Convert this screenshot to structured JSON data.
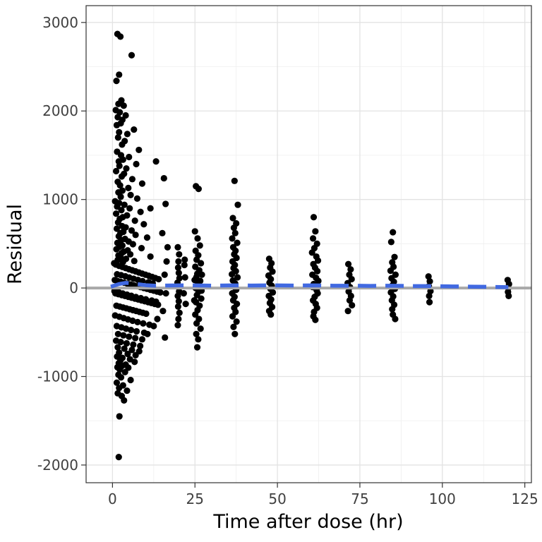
{
  "chart_data": {
    "type": "scatter",
    "title": "",
    "xlabel": "Time after dose (hr)",
    "ylabel": "Residual",
    "xlim": [
      -8,
      127
    ],
    "ylim": [
      -2200,
      3190
    ],
    "x_ticks": [
      0,
      25,
      50,
      75,
      100,
      125
    ],
    "x_minor_ticks": [
      12.5,
      37.5,
      62.5,
      87.5,
      112.5
    ],
    "y_ticks": [
      -2000,
      -1000,
      0,
      1000,
      2000,
      3000
    ],
    "y_minor_ticks": [
      -1500,
      -500,
      500,
      1500,
      2500
    ],
    "grid": true,
    "legend": "none",
    "panel": {
      "background": "#FFFFFF",
      "border": "#333333",
      "grid_major": "#E3E3E3",
      "grid_minor": "#F0F0F0",
      "tick_color": "#333333",
      "tick_label_color": "#404040"
    },
    "point_color": "#000000",
    "point_radius": 4.6,
    "reference_line": {
      "y": 0,
      "color": "#A8A8A8",
      "width": 4
    },
    "smoother": {
      "color": "#4169E1",
      "width": 5.5,
      "dash": "26 13",
      "points": [
        [
          -0.5,
          15
        ],
        [
          2,
          45
        ],
        [
          4,
          58
        ],
        [
          6,
          52
        ],
        [
          8,
          42
        ],
        [
          10,
          32
        ],
        [
          13,
          26
        ],
        [
          16,
          28
        ],
        [
          20,
          30
        ],
        [
          25,
          30
        ],
        [
          30,
          26
        ],
        [
          36,
          30
        ],
        [
          42,
          28
        ],
        [
          48,
          30
        ],
        [
          55,
          28
        ],
        [
          61,
          30
        ],
        [
          67,
          26
        ],
        [
          72,
          26
        ],
        [
          78,
          24
        ],
        [
          85,
          26
        ],
        [
          91,
          22
        ],
        [
          96,
          22
        ],
        [
          103,
          18
        ],
        [
          110,
          15
        ],
        [
          116,
          12
        ],
        [
          120,
          10
        ]
      ]
    },
    "points": [
      [
        1.5,
        2870
      ],
      [
        2.4,
        2840
      ],
      [
        5.8,
        2630
      ],
      [
        2.0,
        2410
      ],
      [
        1.2,
        2340
      ],
      [
        2.7,
        2120
      ],
      [
        1.8,
        2080
      ],
      [
        3.4,
        2060
      ],
      [
        1.0,
        2010
      ],
      [
        2.2,
        1985
      ],
      [
        4.0,
        1950
      ],
      [
        1.6,
        1930
      ],
      [
        3.0,
        1900
      ],
      [
        2.5,
        1860
      ],
      [
        1.3,
        1840
      ],
      [
        6.5,
        1790
      ],
      [
        2.0,
        1760
      ],
      [
        4.5,
        1740
      ],
      [
        1.7,
        1700
      ],
      [
        3.7,
        1660
      ],
      [
        2.9,
        1620
      ],
      [
        8.0,
        1560
      ],
      [
        1.4,
        1540
      ],
      [
        2.6,
        1500
      ],
      [
        5.0,
        1480
      ],
      [
        3.2,
        1450
      ],
      [
        1.9,
        1430
      ],
      [
        13.2,
        1430
      ],
      [
        7.2,
        1400
      ],
      [
        2.1,
        1380
      ],
      [
        4.2,
        1350
      ],
      [
        1.1,
        1320
      ],
      [
        3.5,
        1290
      ],
      [
        2.8,
        1260
      ],
      [
        15.6,
        1240
      ],
      [
        6.0,
        1230
      ],
      [
        1.6,
        1200
      ],
      [
        9.0,
        1180
      ],
      [
        2.3,
        1160
      ],
      [
        4.8,
        1130
      ],
      [
        3.0,
        1100
      ],
      [
        1.8,
        1080
      ],
      [
        5.5,
        1050
      ],
      [
        2.5,
        1030
      ],
      [
        7.5,
        1010
      ],
      [
        16.1,
        950
      ],
      [
        11.5,
        900
      ],
      [
        0.8,
        980
      ],
      [
        2.0,
        960
      ],
      [
        3.6,
        940
      ],
      [
        1.4,
        920
      ],
      [
        5.2,
        900
      ],
      [
        2.7,
        880
      ],
      [
        8.5,
        860
      ],
      [
        1.1,
        840
      ],
      [
        4.4,
        820
      ],
      [
        3.1,
        800
      ],
      [
        2.2,
        780
      ],
      [
        6.8,
        760
      ],
      [
        1.7,
        740
      ],
      [
        9.5,
        720
      ],
      [
        2.9,
        700
      ],
      [
        4.0,
        685
      ],
      [
        1.3,
        670
      ],
      [
        5.8,
        650
      ],
      [
        3.3,
        635
      ],
      [
        2.4,
        620
      ],
      [
        7.0,
        600
      ],
      [
        1.9,
        585
      ],
      [
        10.5,
        570
      ],
      [
        3.8,
        555
      ],
      [
        2.6,
        540
      ],
      [
        4.9,
        525
      ],
      [
        1.5,
        510
      ],
      [
        6.2,
        495
      ],
      [
        3.0,
        480
      ],
      [
        2.1,
        465
      ],
      [
        8.8,
        450
      ],
      [
        1.2,
        438
      ],
      [
        4.6,
        425
      ],
      [
        3.4,
        410
      ],
      [
        2.8,
        395
      ],
      [
        5.4,
        380
      ],
      [
        1.8,
        368
      ],
      [
        11.5,
        355
      ],
      [
        2.5,
        342
      ],
      [
        4.1,
        330
      ],
      [
        1.6,
        318
      ],
      [
        6.6,
        305
      ],
      [
        3.2,
        295
      ],
      [
        16.4,
        300
      ],
      [
        15.8,
        150
      ],
      [
        16.2,
        -60
      ],
      [
        15.3,
        -260
      ],
      [
        16.7,
        460
      ],
      [
        15.1,
        620
      ],
      [
        0.5,
        280
      ],
      [
        1.0,
        265
      ],
      [
        2.0,
        250
      ],
      [
        3.0,
        238
      ],
      [
        4.0,
        225
      ],
      [
        5.0,
        212
      ],
      [
        6.0,
        200
      ],
      [
        7.0,
        188
      ],
      [
        8.0,
        175
      ],
      [
        9.0,
        162
      ],
      [
        10.0,
        150
      ],
      [
        11.0,
        138
      ],
      [
        12.0,
        125
      ],
      [
        13.0,
        112
      ],
      [
        14.0,
        100
      ],
      [
        0.7,
        90
      ],
      [
        1.5,
        80
      ],
      [
        2.5,
        70
      ],
      [
        3.5,
        60
      ],
      [
        4.5,
        50
      ],
      [
        5.5,
        40
      ],
      [
        6.5,
        30
      ],
      [
        7.5,
        20
      ],
      [
        8.5,
        10
      ],
      [
        9.5,
        0
      ],
      [
        10.5,
        -10
      ],
      [
        11.5,
        -20
      ],
      [
        12.5,
        -30
      ],
      [
        13.5,
        -40
      ],
      [
        14.5,
        -50
      ],
      [
        0.9,
        -60
      ],
      [
        1.8,
        -70
      ],
      [
        2.8,
        -80
      ],
      [
        3.8,
        -90
      ],
      [
        4.8,
        -100
      ],
      [
        5.8,
        -110
      ],
      [
        6.8,
        -120
      ],
      [
        7.8,
        -130
      ],
      [
        8.8,
        -140
      ],
      [
        9.8,
        -150
      ],
      [
        10.8,
        -160
      ],
      [
        11.8,
        -170
      ],
      [
        12.8,
        -180
      ],
      [
        13.8,
        -190
      ],
      [
        1.2,
        -200
      ],
      [
        2.2,
        -210
      ],
      [
        3.2,
        -220
      ],
      [
        4.2,
        -230
      ],
      [
        5.2,
        -240
      ],
      [
        6.2,
        -250
      ],
      [
        7.2,
        -260
      ],
      [
        8.2,
        -270
      ],
      [
        9.2,
        -280
      ],
      [
        10.2,
        -290
      ],
      [
        1.4,
        155
      ],
      [
        2.6,
        145
      ],
      [
        3.9,
        132
      ],
      [
        5.1,
        118
      ],
      [
        6.4,
        105
      ],
      [
        7.7,
        92
      ],
      [
        9.1,
        78
      ],
      [
        10.9,
        65
      ],
      [
        12.2,
        52
      ],
      [
        0.6,
        -35
      ],
      [
        1.9,
        -48
      ],
      [
        3.1,
        -62
      ],
      [
        4.4,
        -75
      ],
      [
        5.7,
        -88
      ],
      [
        7.1,
        -102
      ],
      [
        8.6,
        -115
      ],
      [
        10.1,
        -128
      ],
      [
        11.9,
        -142
      ],
      [
        13.2,
        -155
      ],
      [
        0.8,
        -310
      ],
      [
        2.1,
        -325
      ],
      [
        3.4,
        -340
      ],
      [
        4.7,
        -355
      ],
      [
        6.1,
        -370
      ],
      [
        7.6,
        -385
      ],
      [
        9.3,
        -400
      ],
      [
        11.2,
        -415
      ],
      [
        1.3,
        -430
      ],
      [
        2.7,
        -445
      ],
      [
        4.1,
        -460
      ],
      [
        5.6,
        -475
      ],
      [
        7.3,
        -490
      ],
      [
        9.6,
        -505
      ],
      [
        1.7,
        -520
      ],
      [
        3.3,
        -535
      ],
      [
        5.0,
        -550
      ],
      [
        6.9,
        -565
      ],
      [
        9.0,
        -580
      ],
      [
        1.1,
        -595
      ],
      [
        2.5,
        -610
      ],
      [
        4.3,
        -625
      ],
      [
        6.3,
        -640
      ],
      [
        8.4,
        -655
      ],
      [
        1.6,
        -670
      ],
      [
        3.6,
        -685
      ],
      [
        5.9,
        -700
      ],
      [
        8.1,
        -715
      ],
      [
        2.0,
        -730
      ],
      [
        4.6,
        -745
      ],
      [
        7.0,
        -760
      ],
      [
        1.4,
        -775
      ],
      [
        3.0,
        -790
      ],
      [
        5.3,
        -805
      ],
      [
        2.4,
        -820
      ],
      [
        6.7,
        -835
      ],
      [
        1.9,
        -850
      ],
      [
        4.0,
        -865
      ],
      [
        2.9,
        -880
      ],
      [
        1.5,
        -895
      ],
      [
        12.5,
        -430
      ],
      [
        10.6,
        -520
      ],
      [
        13.6,
        -350
      ],
      [
        2.2,
        -920
      ],
      [
        4.8,
        -900
      ],
      [
        3.8,
        -950
      ],
      [
        1.8,
        -980
      ],
      [
        2.6,
        -1010
      ],
      [
        5.5,
        -1040
      ],
      [
        1.3,
        -1070
      ],
      [
        3.2,
        -1100
      ],
      [
        2.0,
        -1130
      ],
      [
        4.4,
        -1160
      ],
      [
        1.6,
        -1190
      ],
      [
        2.8,
        -1220
      ],
      [
        3.5,
        -1270
      ],
      [
        15.9,
        -560
      ],
      [
        2.1,
        -1450
      ],
      [
        1.9,
        -1910
      ],
      [
        19.8,
        460
      ],
      [
        20.2,
        380
      ],
      [
        20.0,
        300
      ],
      [
        19.9,
        230
      ],
      [
        20.1,
        170
      ],
      [
        20.3,
        110
      ],
      [
        19.7,
        60
      ],
      [
        20.0,
        10
      ],
      [
        20.2,
        -40
      ],
      [
        19.8,
        -90
      ],
      [
        20.1,
        -150
      ],
      [
        19.9,
        -210
      ],
      [
        20.3,
        -280
      ],
      [
        20.0,
        -350
      ],
      [
        19.8,
        -420
      ],
      [
        21.8,
        260
      ],
      [
        22.0,
        120
      ],
      [
        21.6,
        -60
      ],
      [
        22.2,
        -180
      ],
      [
        21.9,
        320
      ],
      [
        25.3,
        1150
      ],
      [
        26.1,
        1120
      ],
      [
        25.0,
        640
      ],
      [
        25.8,
        560
      ],
      [
        26.5,
        480
      ],
      [
        25.2,
        420
      ],
      [
        26.0,
        370
      ],
      [
        25.5,
        320
      ],
      [
        26.8,
        280
      ],
      [
        25.1,
        240
      ],
      [
        26.3,
        200
      ],
      [
        25.7,
        160
      ],
      [
        25.4,
        120
      ],
      [
        26.6,
        80
      ],
      [
        25.9,
        40
      ],
      [
        25.2,
        0
      ],
      [
        26.1,
        -40
      ],
      [
        25.6,
        -80
      ],
      [
        26.9,
        -120
      ],
      [
        25.3,
        -160
      ],
      [
        26.4,
        -200
      ],
      [
        25.8,
        -250
      ],
      [
        25.1,
        -300
      ],
      [
        26.2,
        -350
      ],
      [
        25.5,
        -400
      ],
      [
        26.7,
        -460
      ],
      [
        25.4,
        -520
      ],
      [
        26.0,
        -580
      ],
      [
        25.7,
        -670
      ],
      [
        24.9,
        90
      ],
      [
        27.0,
        -30
      ],
      [
        24.8,
        -140
      ],
      [
        27.1,
        150
      ],
      [
        37.0,
        1210
      ],
      [
        38.0,
        940
      ],
      [
        36.5,
        790
      ],
      [
        37.5,
        730
      ],
      [
        36.8,
        680
      ],
      [
        37.2,
        620
      ],
      [
        36.3,
        560
      ],
      [
        37.8,
        510
      ],
      [
        36.6,
        460
      ],
      [
        37.3,
        420
      ],
      [
        36.9,
        380
      ],
      [
        37.6,
        340
      ],
      [
        36.4,
        300
      ],
      [
        37.1,
        260
      ],
      [
        36.7,
        225
      ],
      [
        37.4,
        190
      ],
      [
        36.2,
        155
      ],
      [
        37.9,
        120
      ],
      [
        36.5,
        85
      ],
      [
        37.2,
        50
      ],
      [
        36.8,
        15
      ],
      [
        37.5,
        -20
      ],
      [
        36.3,
        -60
      ],
      [
        37.0,
        -100
      ],
      [
        36.6,
        -140
      ],
      [
        37.7,
        -180
      ],
      [
        36.9,
        -225
      ],
      [
        37.3,
        -270
      ],
      [
        36.4,
        -320
      ],
      [
        37.6,
        -380
      ],
      [
        36.7,
        -440
      ],
      [
        37.1,
        -520
      ],
      [
        47.5,
        330
      ],
      [
        48.2,
        280
      ],
      [
        47.8,
        230
      ],
      [
        48.5,
        185
      ],
      [
        47.3,
        140
      ],
      [
        48.0,
        100
      ],
      [
        47.6,
        60
      ],
      [
        48.3,
        25
      ],
      [
        47.9,
        -10
      ],
      [
        48.6,
        -50
      ],
      [
        47.4,
        -90
      ],
      [
        48.1,
        -130
      ],
      [
        47.7,
        -170
      ],
      [
        48.4,
        -215
      ],
      [
        47.5,
        -260
      ],
      [
        48.0,
        -300
      ],
      [
        61.0,
        800
      ],
      [
        61.5,
        640
      ],
      [
        60.8,
        560
      ],
      [
        62.0,
        500
      ],
      [
        61.2,
        450
      ],
      [
        60.5,
        400
      ],
      [
        61.8,
        355
      ],
      [
        62.3,
        310
      ],
      [
        60.9,
        270
      ],
      [
        61.4,
        230
      ],
      [
        62.1,
        190
      ],
      [
        60.6,
        150
      ],
      [
        61.7,
        115
      ],
      [
        62.4,
        80
      ],
      [
        61.0,
        45
      ],
      [
        60.7,
        10
      ],
      [
        61.9,
        -25
      ],
      [
        62.2,
        -60
      ],
      [
        61.3,
        -100
      ],
      [
        60.8,
        -140
      ],
      [
        61.6,
        -180
      ],
      [
        62.0,
        -225
      ],
      [
        61.1,
        -270
      ],
      [
        60.9,
        -320
      ],
      [
        61.5,
        -360
      ],
      [
        71.5,
        270
      ],
      [
        72.2,
        210
      ],
      [
        71.8,
        150
      ],
      [
        72.5,
        100
      ],
      [
        71.3,
        55
      ],
      [
        72.0,
        10
      ],
      [
        71.6,
        -40
      ],
      [
        72.3,
        -90
      ],
      [
        71.9,
        -140
      ],
      [
        72.6,
        -195
      ],
      [
        71.4,
        -260
      ],
      [
        85.0,
        630
      ],
      [
        84.5,
        520
      ],
      [
        85.5,
        350
      ],
      [
        84.8,
        290
      ],
      [
        85.2,
        240
      ],
      [
        84.3,
        195
      ],
      [
        85.8,
        150
      ],
      [
        84.6,
        110
      ],
      [
        85.3,
        70
      ],
      [
        84.9,
        30
      ],
      [
        85.6,
        -10
      ],
      [
        84.4,
        -50
      ],
      [
        85.1,
        -95
      ],
      [
        84.7,
        -140
      ],
      [
        85.4,
        -190
      ],
      [
        84.8,
        -240
      ],
      [
        85.0,
        -300
      ],
      [
        85.7,
        -350
      ],
      [
        95.8,
        130
      ],
      [
        96.2,
        75
      ],
      [
        95.9,
        20
      ],
      [
        96.4,
        -35
      ],
      [
        96.0,
        -90
      ],
      [
        96.1,
        -160
      ],
      [
        119.8,
        90
      ],
      [
        120.2,
        45
      ],
      [
        120.0,
        0
      ],
      [
        119.9,
        -45
      ],
      [
        120.1,
        -90
      ]
    ]
  }
}
